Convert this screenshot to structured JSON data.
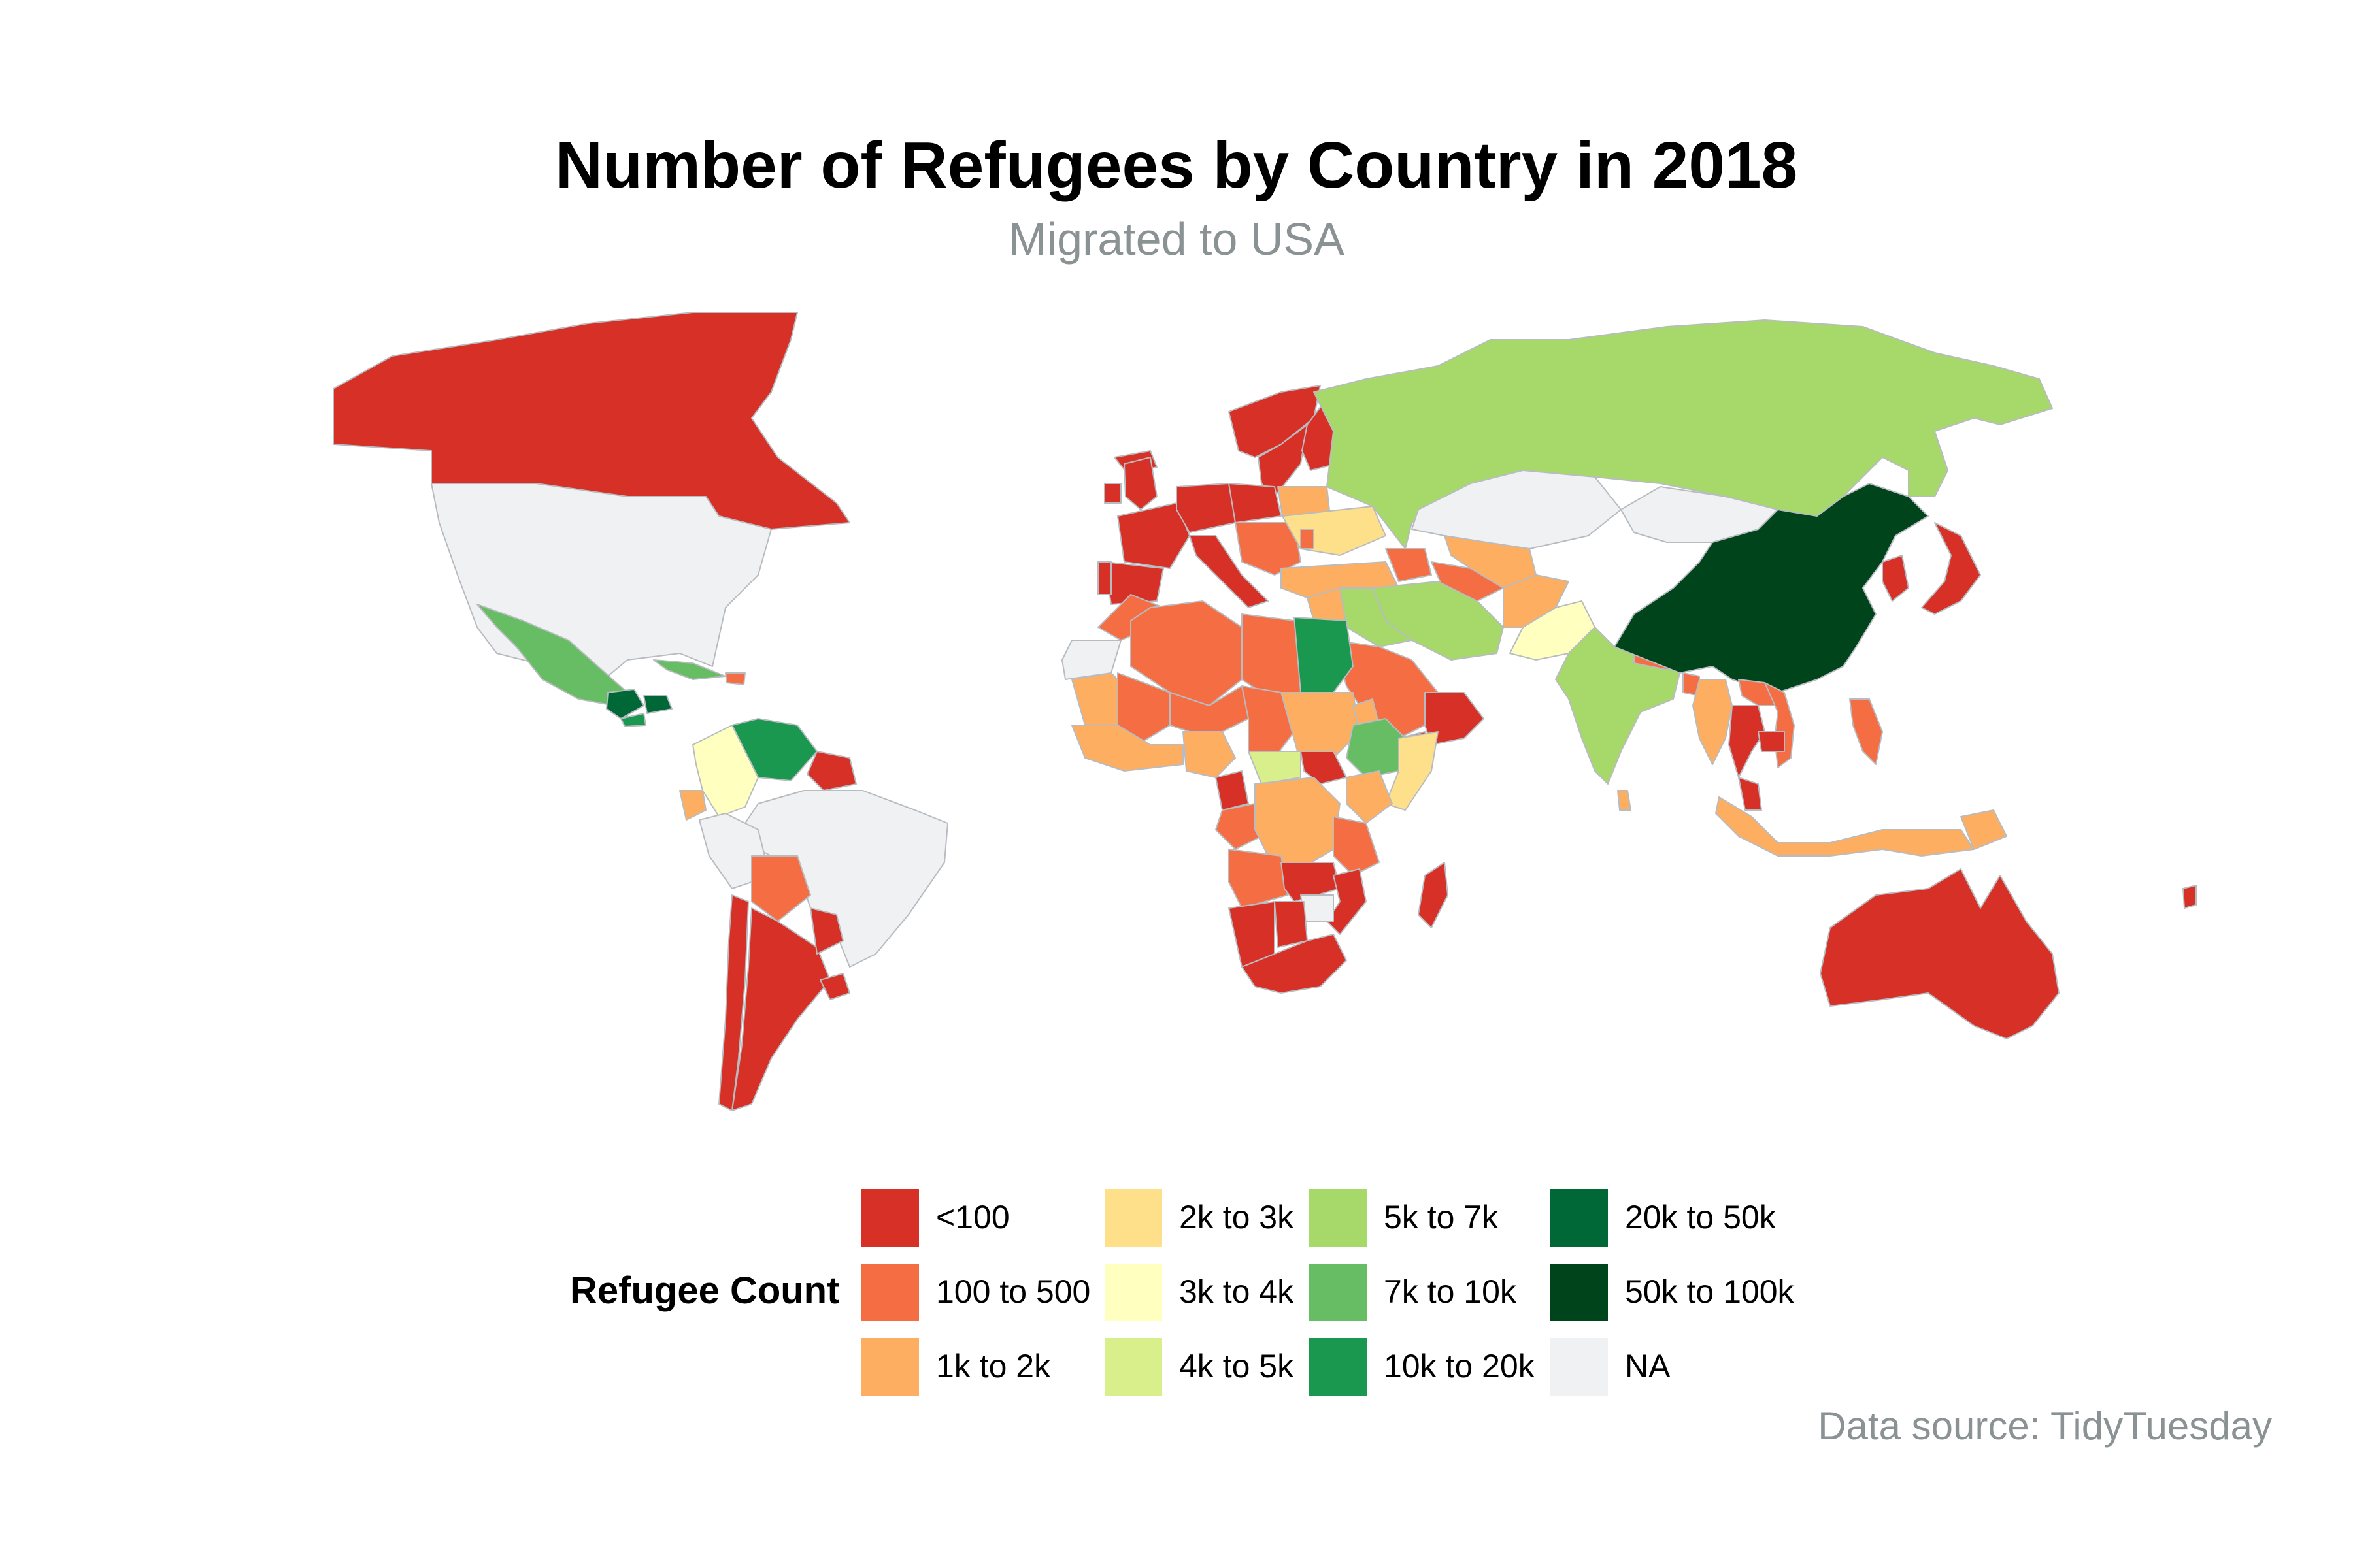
{
  "title": "Number of Refugees by Country in 2018",
  "subtitle": "Migrated to USA",
  "legend": {
    "title": "Refugee Count",
    "bins": [
      {
        "label": "<100",
        "color": "#d73027"
      },
      {
        "label": "100 to 500",
        "color": "#f46d43"
      },
      {
        "label": "1k to 2k",
        "color": "#fdae61"
      },
      {
        "label": "2k to 3k",
        "color": "#fee08b"
      },
      {
        "label": "3k to 4k",
        "color": "#ffffbf"
      },
      {
        "label": "4k to 5k",
        "color": "#d9ef8b"
      },
      {
        "label": "5k to 7k",
        "color": "#a6d96a"
      },
      {
        "label": "7k to 10k",
        "color": "#66bd63"
      },
      {
        "label": "10k to 20k",
        "color": "#1a9850"
      },
      {
        "label": "20k to 50k",
        "color": "#006837"
      },
      {
        "label": "50k to 100k",
        "color": "#00441b"
      },
      {
        "label": "NA",
        "color": "#f0f1f2"
      }
    ]
  },
  "source": "Data source: TidyTuesday",
  "map_style": {
    "border_color": "#b8bcc0",
    "projection": "equirectangular-like world map"
  },
  "regions": [
    {
      "name": "Canada",
      "bin": "<100"
    },
    {
      "name": "USA",
      "bin": "NA"
    },
    {
      "name": "Mexico",
      "bin": "7k to 10k"
    },
    {
      "name": "Guatemala",
      "bin": "20k to 50k"
    },
    {
      "name": "Honduras",
      "bin": "20k to 50k"
    },
    {
      "name": "El Salvador",
      "bin": "10k to 20k"
    },
    {
      "name": "Cuba",
      "bin": "7k to 10k"
    },
    {
      "name": "Haiti",
      "bin": "100 to 500"
    },
    {
      "name": "Venezuela",
      "bin": "10k to 20k"
    },
    {
      "name": "Colombia",
      "bin": "3k to 4k"
    },
    {
      "name": "Ecuador",
      "bin": "1k to 2k"
    },
    {
      "name": "Guyana",
      "bin": "<100"
    },
    {
      "name": "Brazil",
      "bin": "NA"
    },
    {
      "name": "Peru",
      "bin": "NA"
    },
    {
      "name": "Bolivia",
      "bin": "100 to 500"
    },
    {
      "name": "Argentina",
      "bin": "<100"
    },
    {
      "name": "Chile",
      "bin": "<100"
    },
    {
      "name": "Uruguay",
      "bin": "<100"
    },
    {
      "name": "Paraguay",
      "bin": "<100"
    },
    {
      "name": "Iceland",
      "bin": "<100"
    },
    {
      "name": "Norway",
      "bin": "<100"
    },
    {
      "name": "Sweden",
      "bin": "<100"
    },
    {
      "name": "Finland",
      "bin": "<100"
    },
    {
      "name": "UK",
      "bin": "<100"
    },
    {
      "name": "Ireland",
      "bin": "<100"
    },
    {
      "name": "France",
      "bin": "<100"
    },
    {
      "name": "Spain",
      "bin": "<100"
    },
    {
      "name": "Portugal",
      "bin": "<100"
    },
    {
      "name": "Germany",
      "bin": "<100"
    },
    {
      "name": "Poland",
      "bin": "<100"
    },
    {
      "name": "Italy",
      "bin": "<100"
    },
    {
      "name": "Balkans",
      "bin": "100 to 500"
    },
    {
      "name": "Belarus",
      "bin": "1k to 2k"
    },
    {
      "name": "Ukraine",
      "bin": "2k to 3k"
    },
    {
      "name": "Moldova",
      "bin": "100 to 500"
    },
    {
      "name": "Turkey",
      "bin": "1k to 2k"
    },
    {
      "name": "Russia",
      "bin": "5k to 7k"
    },
    {
      "name": "Kazakhstan",
      "bin": "NA"
    },
    {
      "name": "Mongolia",
      "bin": "NA"
    },
    {
      "name": "Uzbekistan",
      "bin": "1k to 2k"
    },
    {
      "name": "Turkmenistan",
      "bin": "100 to 500"
    },
    {
      "name": "Caucasus",
      "bin": "100 to 500"
    },
    {
      "name": "Iran",
      "bin": "5k to 7k"
    },
    {
      "name": "Iraq",
      "bin": "5k to 7k"
    },
    {
      "name": "Syria",
      "bin": "1k to 2k"
    },
    {
      "name": "Afghanistan",
      "bin": "1k to 2k"
    },
    {
      "name": "Pakistan",
      "bin": "3k to 4k"
    },
    {
      "name": "India",
      "bin": "5k to 7k"
    },
    {
      "name": "Nepal",
      "bin": "100 to 500"
    },
    {
      "name": "Sri Lanka",
      "bin": "1k to 2k"
    },
    {
      "name": "Bangladesh",
      "bin": "100 to 500"
    },
    {
      "name": "Saudi Arabia",
      "bin": "100 to 500"
    },
    {
      "name": "Yemen",
      "bin": "<100"
    },
    {
      "name": "Oman",
      "bin": "<100"
    },
    {
      "name": "China",
      "bin": "50k to 100k"
    },
    {
      "name": "Korea",
      "bin": "<100"
    },
    {
      "name": "Japan",
      "bin": "<100"
    },
    {
      "name": "Myanmar",
      "bin": "1k to 2k"
    },
    {
      "name": "Thailand",
      "bin": "<100"
    },
    {
      "name": "Laos",
      "bin": "100 to 500"
    },
    {
      "name": "Vietnam",
      "bin": "100 to 500"
    },
    {
      "name": "Cambodia",
      "bin": "<100"
    },
    {
      "name": "Malaysia",
      "bin": "<100"
    },
    {
      "name": "Indonesia",
      "bin": "1k to 2k"
    },
    {
      "name": "Philippines",
      "bin": "100 to 500"
    },
    {
      "name": "Papua New Guinea",
      "bin": "1k to 2k"
    },
    {
      "name": "Australia",
      "bin": "<100"
    },
    {
      "name": "New Zealand",
      "bin": "<100"
    },
    {
      "name": "Morocco",
      "bin": "100 to 500"
    },
    {
      "name": "Western Sahara",
      "bin": "NA"
    },
    {
      "name": "Algeria",
      "bin": "100 to 500"
    },
    {
      "name": "Libya",
      "bin": "100 to 500"
    },
    {
      "name": "Egypt",
      "bin": "10k to 20k"
    },
    {
      "name": "Mauritania",
      "bin": "1k to 2k"
    },
    {
      "name": "Mali",
      "bin": "100 to 500"
    },
    {
      "name": "Niger",
      "bin": "100 to 500"
    },
    {
      "name": "Chad",
      "bin": "100 to 500"
    },
    {
      "name": "Sudan",
      "bin": "1k to 2k"
    },
    {
      "name": "South Sudan",
      "bin": "<100"
    },
    {
      "name": "Eritrea",
      "bin": "1k to 2k"
    },
    {
      "name": "Ethiopia",
      "bin": "7k to 10k"
    },
    {
      "name": "Somalia",
      "bin": "2k to 3k"
    },
    {
      "name": "Kenya",
      "bin": "1k to 2k"
    },
    {
      "name": "West Africa",
      "bin": "1k to 2k"
    },
    {
      "name": "Nigeria",
      "bin": "1k to 2k"
    },
    {
      "name": "Central African Republic",
      "bin": "4k to 5k"
    },
    {
      "name": "Cameroon",
      "bin": "<100"
    },
    {
      "name": "Gabon/Congo",
      "bin": "100 to 500"
    },
    {
      "name": "DR Congo",
      "bin": "1k to 2k"
    },
    {
      "name": "Tanzania",
      "bin": "100 to 500"
    },
    {
      "name": "Angola",
      "bin": "100 to 500"
    },
    {
      "name": "Zambia",
      "bin": "<100"
    },
    {
      "name": "Mozambique",
      "bin": "<100"
    },
    {
      "name": "Zimbabwe",
      "bin": "NA"
    },
    {
      "name": "Namibia",
      "bin": "<100"
    },
    {
      "name": "Botswana",
      "bin": "<100"
    },
    {
      "name": "South Africa",
      "bin": "<100"
    },
    {
      "name": "Madagascar",
      "bin": "<100"
    }
  ]
}
